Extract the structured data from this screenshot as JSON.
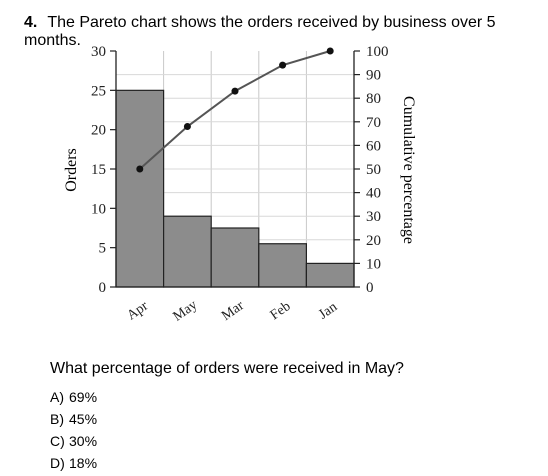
{
  "question": {
    "number": "4.",
    "text": "The Pareto chart shows the orders received by business over 5 months."
  },
  "chart_data": {
    "type": "bar",
    "categories": [
      "Apr",
      "May",
      "Mar",
      "Feb",
      "Jan"
    ],
    "values": [
      25,
      9,
      7.5,
      5.5,
      3
    ],
    "cumulative_percent": [
      50,
      68,
      83,
      94,
      100
    ],
    "ylabel": "Orders",
    "y2label": "Cumulative percentage",
    "ylim": [
      0,
      30
    ],
    "y2lim": [
      0,
      100
    ],
    "yticks": [
      0,
      5,
      10,
      15,
      20,
      25,
      30
    ],
    "y2ticks": [
      0,
      10,
      20,
      30,
      40,
      50,
      60,
      70,
      80,
      90,
      100
    ],
    "bar_color": "#8c8c8c",
    "line_color": "#555555",
    "grid": true
  },
  "prompt": "What percentage of orders were received in May?",
  "choices": [
    {
      "letter": "A)",
      "text": "69%"
    },
    {
      "letter": "B)",
      "text": "45%"
    },
    {
      "letter": "C)",
      "text": "30%"
    },
    {
      "letter": "D)",
      "text": "18%"
    }
  ]
}
